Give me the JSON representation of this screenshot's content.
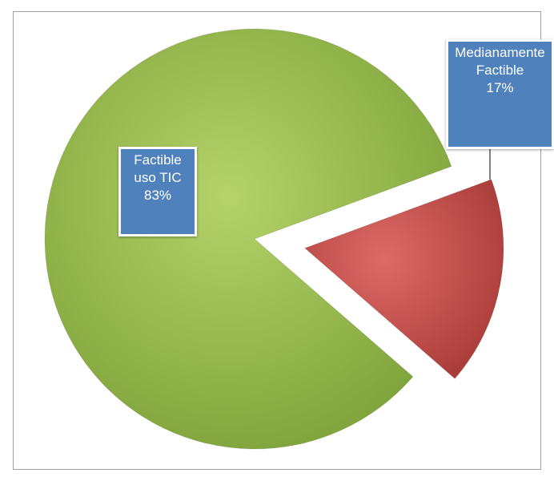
{
  "chart_data": {
    "type": "pie",
    "categories": [
      "Factible uso TIC",
      "Medianamente Factible"
    ],
    "values": [
      83,
      17
    ],
    "value_labels": [
      "83%",
      "17%"
    ],
    "colors": [
      "#9bbb59",
      "#c0504d"
    ]
  }
}
